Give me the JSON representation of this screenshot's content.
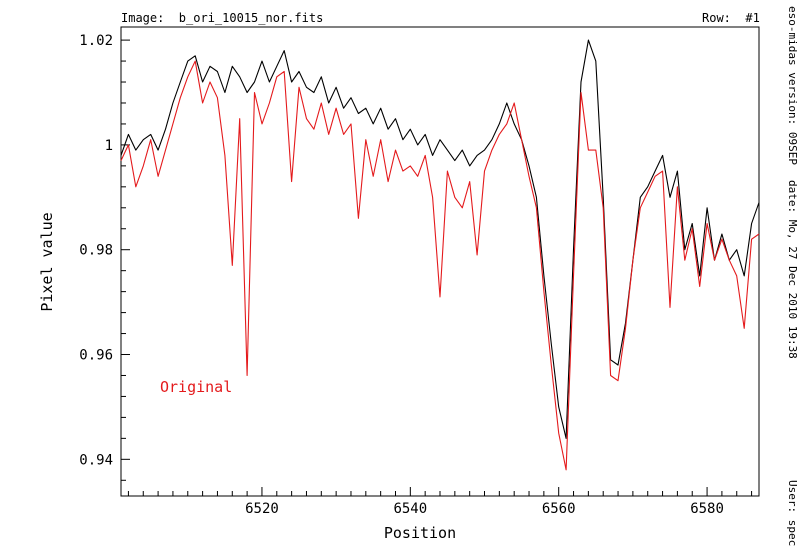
{
  "header": {
    "image_label": "Image:  b_ori_10015_nor.fits",
    "row_label": "Row:  #1"
  },
  "side_info": {
    "version": "eso-midas version: 09SEP",
    "date": "date: Mo, 27 Dec 2010 19:38",
    "user": "User: spec"
  },
  "chart_data": {
    "type": "line",
    "xlabel": "Position",
    "ylabel": "Pixel value",
    "xlim": [
      6501,
      6587
    ],
    "ylim": [
      0.933,
      1.0225
    ],
    "xticks": [
      6520,
      6540,
      6560,
      6580
    ],
    "yticks": [
      0.94,
      0.96,
      0.98,
      1.0,
      1.02
    ],
    "ytick_labels": [
      "0.94",
      "0.96",
      "0.98",
      "1",
      "1.02"
    ],
    "annotation": "Original",
    "colors": {
      "axis": "#000000",
      "black_series": "#000000",
      "red_series": "#e41a1c"
    },
    "series": [
      {
        "name": "",
        "color": "#000000",
        "x": [
          6501,
          6502,
          6503,
          6504,
          6505,
          6506,
          6507,
          6508,
          6509,
          6510,
          6511,
          6512,
          6513,
          6514,
          6515,
          6516,
          6517,
          6518,
          6519,
          6520,
          6521,
          6522,
          6523,
          6524,
          6525,
          6526,
          6527,
          6528,
          6529,
          6530,
          6531,
          6532,
          6533,
          6534,
          6535,
          6536,
          6537,
          6538,
          6539,
          6540,
          6541,
          6542,
          6543,
          6544,
          6545,
          6546,
          6547,
          6548,
          6549,
          6550,
          6551,
          6552,
          6553,
          6554,
          6555,
          6556,
          6557,
          6558,
          6559,
          6560,
          6561,
          6562,
          6563,
          6564,
          6565,
          6566,
          6567,
          6568,
          6569,
          6570,
          6571,
          6572,
          6573,
          6574,
          6575,
          6576,
          6577,
          6578,
          6579,
          6580,
          6581,
          6582,
          6583,
          6584,
          6585,
          6586,
          6587
        ],
        "y": [
          0.998,
          1.002,
          0.999,
          1.001,
          1.002,
          0.999,
          1.003,
          1.008,
          1.012,
          1.016,
          1.017,
          1.012,
          1.015,
          1.014,
          1.01,
          1.015,
          1.013,
          1.01,
          1.012,
          1.016,
          1.012,
          1.015,
          1.018,
          1.012,
          1.014,
          1.011,
          1.01,
          1.013,
          1.008,
          1.011,
          1.007,
          1.009,
          1.006,
          1.007,
          1.004,
          1.007,
          1.003,
          1.005,
          1.001,
          1.003,
          1.0,
          1.002,
          0.998,
          1.001,
          0.999,
          0.997,
          0.999,
          0.996,
          0.998,
          0.999,
          1.001,
          1.004,
          1.008,
          1.004,
          1.001,
          0.996,
          0.99,
          0.975,
          0.962,
          0.95,
          0.944,
          0.98,
          1.012,
          1.02,
          1.016,
          0.99,
          0.959,
          0.958,
          0.966,
          0.978,
          0.99,
          0.992,
          0.995,
          0.998,
          0.99,
          0.995,
          0.98,
          0.985,
          0.975,
          0.988,
          0.978,
          0.983,
          0.978,
          0.98,
          0.975,
          0.985,
          0.989
        ]
      },
      {
        "name": "",
        "color": "#e41a1c",
        "x": [
          6501,
          6502,
          6503,
          6504,
          6505,
          6506,
          6507,
          6508,
          6509,
          6510,
          6511,
          6512,
          6513,
          6514,
          6515,
          6516,
          6517,
          6518,
          6519,
          6520,
          6521,
          6522,
          6523,
          6524,
          6525,
          6526,
          6527,
          6528,
          6529,
          6530,
          6531,
          6532,
          6533,
          6534,
          6535,
          6536,
          6537,
          6538,
          6539,
          6540,
          6541,
          6542,
          6543,
          6544,
          6545,
          6546,
          6547,
          6548,
          6549,
          6550,
          6551,
          6552,
          6553,
          6554,
          6555,
          6556,
          6557,
          6558,
          6559,
          6560,
          6561,
          6562,
          6563,
          6564,
          6565,
          6566,
          6567,
          6568,
          6569,
          6570,
          6571,
          6572,
          6573,
          6574,
          6575,
          6576,
          6577,
          6578,
          6579,
          6580,
          6581,
          6582,
          6583,
          6584,
          6585,
          6586,
          6587
        ],
        "y": [
          0.997,
          1.0,
          0.992,
          0.996,
          1.001,
          0.994,
          0.999,
          1.004,
          1.009,
          1.013,
          1.016,
          1.008,
          1.012,
          1.009,
          0.998,
          0.977,
          1.005,
          0.956,
          1.01,
          1.004,
          1.008,
          1.013,
          1.014,
          0.993,
          1.011,
          1.005,
          1.003,
          1.008,
          1.002,
          1.007,
          1.002,
          1.004,
          0.986,
          1.001,
          0.994,
          1.001,
          0.993,
          0.999,
          0.995,
          0.996,
          0.994,
          0.998,
          0.99,
          0.971,
          0.995,
          0.99,
          0.988,
          0.993,
          0.979,
          0.995,
          0.999,
          1.002,
          1.004,
          1.008,
          1.001,
          0.994,
          0.988,
          0.972,
          0.958,
          0.945,
          0.938,
          0.975,
          1.01,
          0.999,
          0.999,
          0.988,
          0.956,
          0.955,
          0.965,
          0.978,
          0.988,
          0.991,
          0.994,
          0.995,
          0.969,
          0.992,
          0.978,
          0.984,
          0.973,
          0.985,
          0.978,
          0.982,
          0.978,
          0.975,
          0.965,
          0.982,
          0.983
        ]
      }
    ]
  }
}
